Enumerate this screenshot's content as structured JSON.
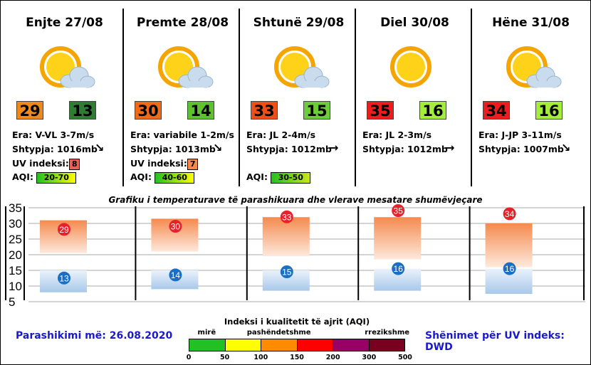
{
  "days": [
    {
      "title": "Enjte 27/08",
      "icon": "partly-cloudy-icon",
      "max": "29",
      "min": "13",
      "max_color": "#ef8a1a",
      "min_color": "#2f7d33",
      "wind": "Era: V-VL 3-7m/s",
      "pressure": "Shtypja: 1016mb",
      "arrow": "↘",
      "uv_label": "UV indeksi:",
      "uv": "8",
      "uv_color": "#e8605c",
      "aqi_label": "AQI:",
      "aqi": "20-70",
      "aqi_bg": "linear-gradient(to right,#22c022,#ffff00)"
    },
    {
      "title": "Premte 28/08",
      "icon": "partly-cloudy-icon",
      "max": "30",
      "min": "14",
      "max_color": "#f06a16",
      "min_color": "#5cc32f",
      "wind": "Era: variabile 1-2m/s",
      "pressure": "Shtypja: 1013mb",
      "arrow": "↘",
      "uv_label": "UV indeksi:",
      "uv": "7",
      "uv_color": "#f3894a",
      "aqi_label": "AQI:",
      "aqi": "40-60",
      "aqi_bg": "linear-gradient(to right,#22c022,#ffff00)"
    },
    {
      "title": "Shtunë 29/08",
      "icon": "partly-cloudy-icon",
      "max": "33",
      "min": "15",
      "max_color": "#f04e14",
      "min_color": "#6dcc3a",
      "wind": "Era: JL 2-4m/s",
      "pressure": "Shtypja: 1012mb",
      "arrow": "→",
      "uv_label": "",
      "uv": "",
      "uv_color": "",
      "aqi_label": "AQI:",
      "aqi": "30-50",
      "aqi_bg": "linear-gradient(to right,#22c022,#c8e81a)"
    },
    {
      "title": "Diel 30/08",
      "icon": "sun-icon",
      "max": "35",
      "min": "16",
      "max_color": "#ee1c1c",
      "min_color": "#a4ee3a",
      "wind": "Era: JL 2-3m/s",
      "pressure": "Shtypja: 1012mb",
      "arrow": "→",
      "uv_label": "",
      "uv": "",
      "uv_color": "",
      "aqi_label": "",
      "aqi": "",
      "aqi_bg": ""
    },
    {
      "title": "Hëne 31/08",
      "icon": "partly-cloudy-icon",
      "max": "34",
      "min": "16",
      "max_color": "#ee1c1c",
      "min_color": "#a4ee3a",
      "wind": "Era: J-JP 3-11m/s",
      "pressure": "Shtypja: 1007mb",
      "arrow": "↘",
      "uv_label": "",
      "uv": "",
      "uv_color": "",
      "aqi_label": "",
      "aqi": "",
      "aqi_bg": ""
    }
  ],
  "chart_data": {
    "type": "bar",
    "title": "Grafiku i temperaturave të parashikuara dhe vlerave mesatare shumëvjeçare",
    "categories": [
      "Enjte 27/08",
      "Premte 28/08",
      "Shtunë 29/08",
      "Diel 30/08",
      "Hëne 31/08"
    ],
    "ylim": [
      5,
      35
    ],
    "yticks": [
      5,
      10,
      15,
      20,
      25,
      30,
      35
    ],
    "grid": true,
    "series": [
      {
        "name": "",
        "values": [
          29,
          30,
          33,
          35,
          34
        ],
        "marker_color": "#e8202a"
      },
      {
        "name": "",
        "values": [
          13,
          14,
          15,
          16,
          16
        ],
        "marker_color": "#1a6fc4"
      }
    ],
    "warm_bands": [
      [
        20.5,
        31
      ],
      [
        21,
        31.5
      ],
      [
        19.5,
        32
      ],
      [
        18.5,
        32
      ],
      [
        16,
        30
      ]
    ],
    "cool_bands": [
      [
        8,
        15
      ],
      [
        9,
        15
      ],
      [
        8.5,
        15
      ],
      [
        8.5,
        15.5
      ],
      [
        7.5,
        15.5
      ]
    ]
  },
  "footer": {
    "issued": "Parashikimi më: 26.08.2020",
    "uv_note": "Shënimet për UV indeks: DWD"
  },
  "aqi_legend": {
    "title": "Indeksi i kualitetit të ajrit (AQI)",
    "categories": [
      {
        "label": "mirë",
        "at": 0
      },
      {
        "label": "pashëndetshme",
        "at": 2
      },
      {
        "label": "rrezikshme",
        "at": 5
      }
    ],
    "colors": [
      "#22c022",
      "#ffff00",
      "#ff8c00",
      "#ff0000",
      "#990066",
      "#7a0020"
    ],
    "ticks": [
      "0",
      "50",
      "100",
      "150",
      "200",
      "300",
      "500"
    ]
  }
}
